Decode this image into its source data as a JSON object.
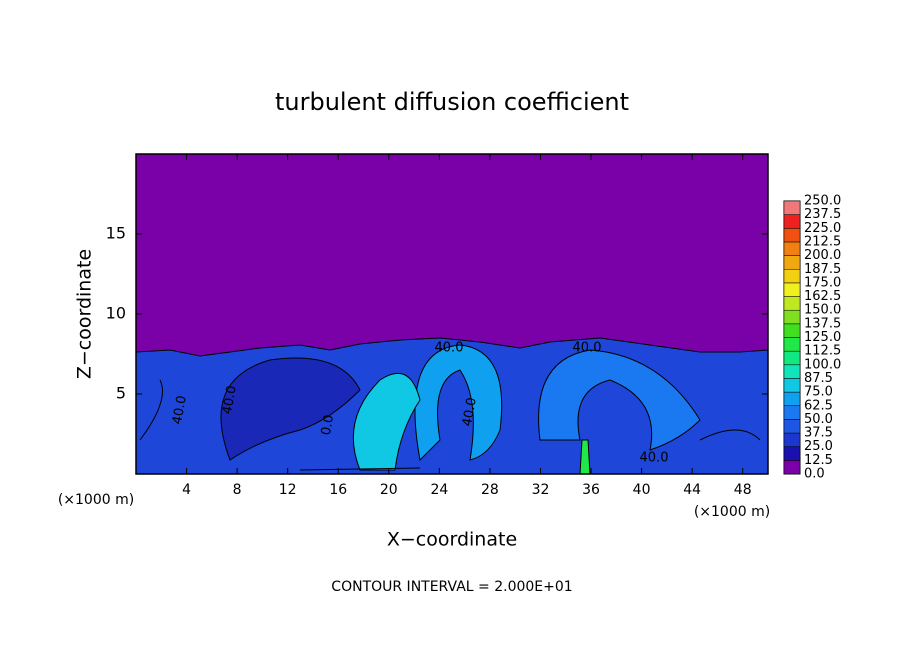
{
  "chart_data": {
    "type": "contour",
    "title": "turbulent diffusion coefficient",
    "xlabel": "X−coordinate",
    "ylabel": "Z−coordinate",
    "x_unit": "(×1000 m)",
    "x_unit_right": "(×1000 m)",
    "footer": "CONTOUR INTERVAL = 2.000E+01",
    "xlim": [
      0,
      50
    ],
    "ylim": [
      0,
      20
    ],
    "xticks": [
      4,
      8,
      12,
      16,
      20,
      24,
      28,
      32,
      36,
      40,
      44,
      48
    ],
    "yticks": [
      5,
      10,
      15
    ],
    "contour_labels": [
      "40.0",
      "40.0",
      "40.0",
      "40.0",
      "40.0",
      "40.0",
      "0.0"
    ],
    "colorbar": {
      "levels": [
        {
          "value": 0,
          "label": "0.0"
        },
        12.5,
        {
          "value": 25,
          "label": "25.0"
        },
        37.5,
        {
          "value": 50,
          "label": "50.0"
        },
        62.5,
        {
          "value": 75,
          "label": "75.0"
        },
        87.5,
        {
          "value": 100,
          "label": "100.0"
        },
        112.5,
        {
          "value": 125,
          "label": "125.0"
        },
        137.5,
        {
          "value": 150,
          "label": "150.0"
        },
        162.5,
        {
          "value": 175,
          "label": "175.0"
        },
        187.5,
        {
          "value": 200,
          "label": "200.0"
        },
        212.5,
        {
          "value": 225,
          "label": "225.0"
        },
        237.5,
        {
          "value": 250,
          "label": "250.0"
        }
      ],
      "colors": [
        "#7a00a8",
        "#1a10b0",
        "#1e36d0",
        "#1e56e4",
        "#1a78f0",
        "#10a0f0",
        "#10c8e4",
        "#10e4b8",
        "#10e880",
        "#20e848",
        "#40e020",
        "#80e020",
        "#c0e820",
        "#f0f020",
        "#f0d010",
        "#f0a810",
        "#f08010",
        "#f05010",
        "#f02020",
        "#f07878"
      ]
    }
  }
}
